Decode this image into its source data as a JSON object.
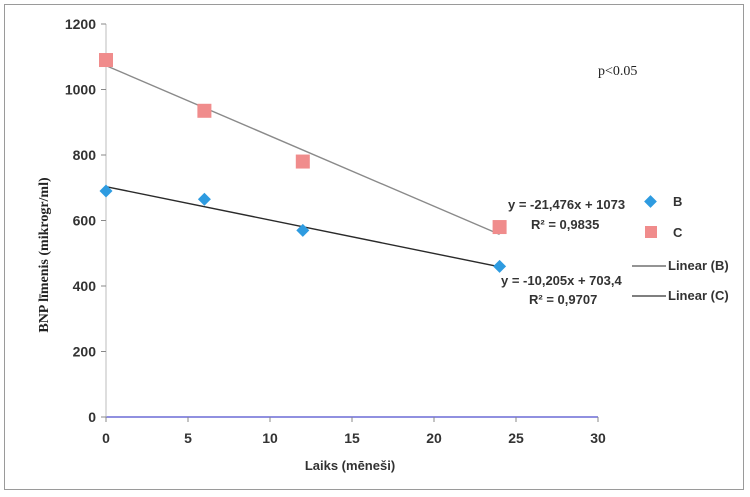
{
  "chart_data": {
    "type": "scatter",
    "title": "",
    "xlabel": "Laiks (mēneši)",
    "ylabel": "BNP līmenis (mikrogr/ml)",
    "xlim": [
      0,
      30
    ],
    "ylim": [
      0,
      1200
    ],
    "x_ticks": [
      "0",
      "5",
      "10",
      "15",
      "20",
      "25",
      "30"
    ],
    "y_ticks": [
      "0",
      "200",
      "400",
      "600",
      "800",
      "1000",
      "1200"
    ],
    "grid": false,
    "legend_position": "right",
    "series": [
      {
        "name": "B",
        "color": "#2e9be0",
        "marker": "diamond",
        "x": [
          0,
          6,
          12,
          24
        ],
        "y": [
          690,
          665,
          570,
          460
        ]
      },
      {
        "name": "C",
        "color": "#f08c8c",
        "marker": "square",
        "x": [
          0,
          6,
          12,
          24
        ],
        "y": [
          1090,
          935,
          780,
          580
        ]
      }
    ],
    "trendlines": [
      {
        "name": "Linear (B)",
        "color": "#2a2a2a",
        "slope": -10.205,
        "intercept": 703.4,
        "x_range": [
          0,
          24
        ],
        "equation": "y = -10,205x + 703,4",
        "r2": "R² = 0,9707"
      },
      {
        "name": "Linear (C)",
        "color": "#8a8a8a",
        "slope": -21.476,
        "intercept": 1073,
        "x_range": [
          0,
          24
        ],
        "equation": "y = -21,476x + 1073",
        "r2": "R² = 0,9835"
      }
    ],
    "annotation": "p<0.05"
  }
}
